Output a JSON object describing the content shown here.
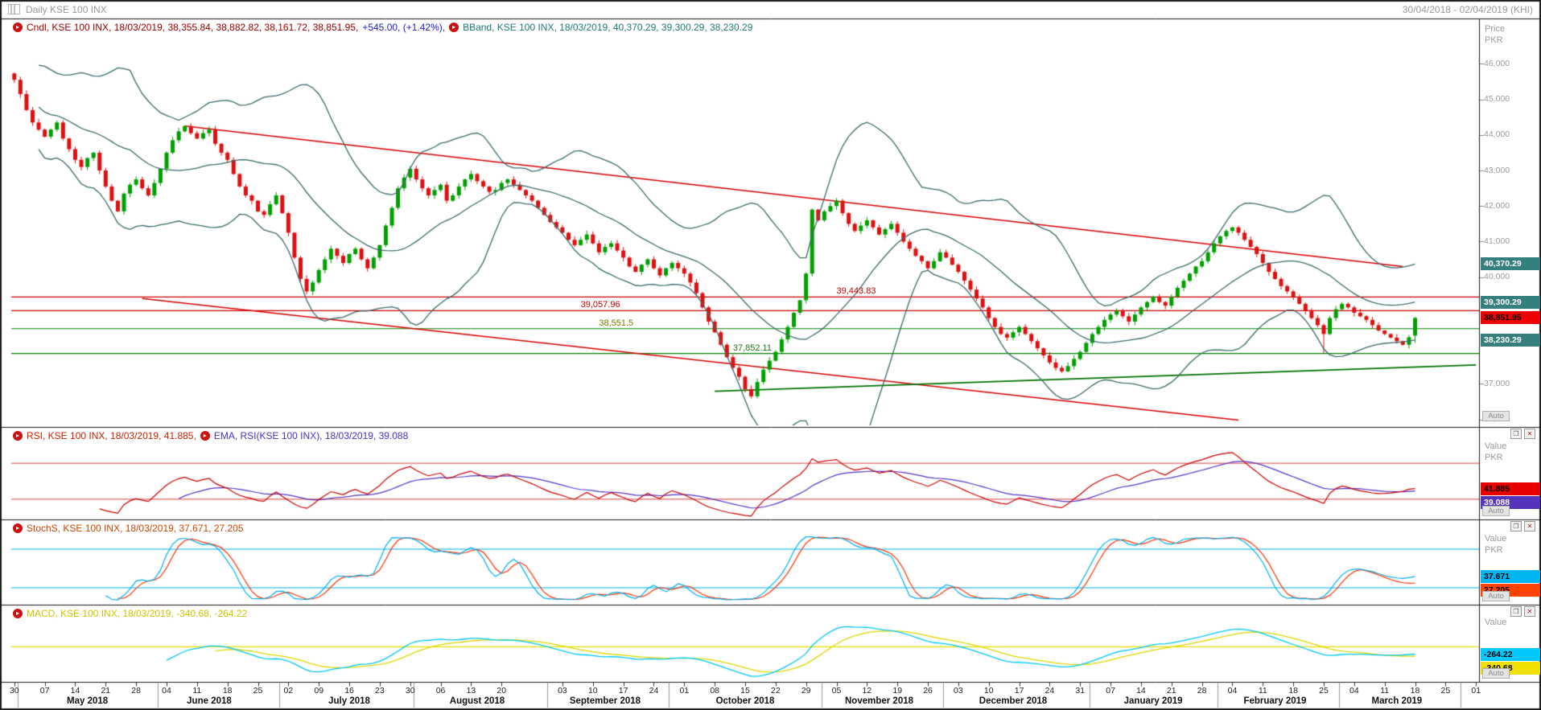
{
  "window": {
    "title": "Daily KSE 100 INX",
    "date_range": "30/04/2018 - 02/04/2019 (KHI)"
  },
  "icons": {
    "restore": "❐",
    "close": "✕",
    "legend_arrow": "▸"
  },
  "main_panel": {
    "legend": {
      "cndl": "Cndl, KSE 100 INX, 18/03/2019, 38,355.84, 38,882.82, 38,161.72, 38,851.95,",
      "change": "+545.00, (+1.42%),",
      "bband": "BBand, KSE 100 INX, 18/03/2019, 40,370.29, 39,300.29, 38,230.29"
    },
    "axis": {
      "title1": "Price",
      "title2": "PKR",
      "auto": "Auto",
      "ticks": [
        {
          "label": "46,000",
          "value": 46000
        },
        {
          "label": "45,000",
          "value": 45000
        },
        {
          "label": "44,000",
          "value": 44000
        },
        {
          "label": "43,000",
          "value": 43000
        },
        {
          "label": "42,000",
          "value": 42000
        },
        {
          "label": "41,000",
          "value": 41000
        },
        {
          "label": "40,000",
          "value": 40000
        },
        {
          "label": "37,000",
          "value": 37000
        },
        {
          "label": "36,000",
          "value": 36000
        }
      ]
    },
    "price_boxes": [
      {
        "label": "40,370.29",
        "value": 40370.29,
        "bg": "#357f7f",
        "fg": "#ffffff"
      },
      {
        "label": "39,300.29",
        "value": 39300.29,
        "bg": "#357f7f",
        "fg": "#ffffff"
      },
      {
        "label": "38,851.95",
        "value": 38851.95,
        "bg": "#f00000",
        "fg": "#000000"
      },
      {
        "label": "38,230.29",
        "value": 38230.29,
        "bg": "#357f7f",
        "fg": "#ffffff"
      }
    ],
    "level_labels": [
      {
        "label": "39,443.83",
        "value": 39443.83,
        "color": "#cc0000",
        "day": 135
      },
      {
        "label": "39,057.96",
        "value": 39057.96,
        "color": "#cc0000",
        "day": 93
      },
      {
        "label": "38,551.5",
        "value": 38551.5,
        "color": "#7d7d00",
        "day": 96
      },
      {
        "label": "37,852.11",
        "value": 37852.11,
        "color": "#1e7d1e",
        "day": 118
      }
    ]
  },
  "rsi_panel": {
    "legend_rsi": "RSI, KSE 100 INX, 18/03/2019, 41.885,",
    "legend_ema": "EMA, RSI(KSE 100 INX), 18/03/2019, 39.088",
    "axis": {
      "title1": "Value",
      "title2": "PKR",
      "auto": "Auto"
    },
    "boxes": [
      {
        "label": "41.885",
        "value": 41.885,
        "bg": "#e80000",
        "fg": "#000000"
      },
      {
        "label": "39.088",
        "value": 39.088,
        "bg": "#5533bb",
        "fg": "#ffffff"
      }
    ]
  },
  "stoch_panel": {
    "legend": "StochS, KSE 100 INX, 18/03/2019, 37.671, 27.205",
    "axis": {
      "title1": "Value",
      "title2": "PKR",
      "auto": "Auto"
    },
    "boxes": [
      {
        "label": "37.671",
        "value": 37.671,
        "bg": "#00b4f0",
        "fg": "#000000"
      },
      {
        "label": "27.205",
        "value": 27.205,
        "bg": "#ff4400",
        "fg": "#000000"
      }
    ]
  },
  "macd_panel": {
    "legend": "MACD, KSE 100 INX, 18/03/2019, -340.68, -264.22",
    "axis": {
      "title1": "Value",
      "auto": "Auto"
    },
    "boxes": [
      {
        "label": "-264.22",
        "value": -264.22,
        "bg": "#00c8fa",
        "fg": "#000000"
      },
      {
        "label": "-340.68",
        "value": -340.68,
        "bg": "#f0e000",
        "fg": "#000000"
      }
    ]
  },
  "chart_data": {
    "type": "candlestick-with-indicators",
    "instrument": "KSE 100 INX",
    "interval": "Daily",
    "last_candle": {
      "date": "18/03/2019",
      "open": 38355.84,
      "high": 38882.82,
      "low": 38161.72,
      "close": 38851.95,
      "change": 545.0,
      "change_pct": 1.42
    },
    "bollinger": {
      "period": 20,
      "upper": 40370.29,
      "middle": 39300.29,
      "lower": 38230.29
    },
    "ylim": [
      35900,
      46800
    ],
    "x_axis_days": 241,
    "closes": [
      45550,
      45150,
      44700,
      44350,
      44150,
      43950,
      44150,
      44350,
      43900,
      43600,
      43300,
      43100,
      43350,
      43500,
      43000,
      42550,
      42150,
      41850,
      42350,
      42600,
      42750,
      42500,
      42300,
      42650,
      43050,
      43500,
      43850,
      44100,
      44250,
      44050,
      43900,
      44050,
      44150,
      43750,
      43500,
      43300,
      42900,
      42550,
      42300,
      42150,
      41850,
      41750,
      42050,
      42300,
      41800,
      41250,
      40550,
      39950,
      39600,
      39850,
      40200,
      40500,
      40800,
      40600,
      40400,
      40650,
      40800,
      40500,
      40250,
      40550,
      40900,
      41450,
      41950,
      42500,
      42800,
      43050,
      42750,
      42500,
      42300,
      42450,
      42600,
      42150,
      42300,
      42550,
      42750,
      42900,
      42700,
      42550,
      42400,
      42450,
      42650,
      42750,
      42600,
      42450,
      42300,
      42150,
      41950,
      41750,
      41550,
      41400,
      41250,
      41050,
      40900,
      41050,
      41200,
      40950,
      40700,
      40850,
      40950,
      40750,
      40550,
      40300,
      40150,
      40350,
      40500,
      40250,
      40050,
      40250,
      40400,
      40250,
      40100,
      39850,
      39550,
      39150,
      38750,
      38450,
      38100,
      37750,
      37450,
      37200,
      36850,
      36650,
      37050,
      37400,
      37650,
      37900,
      38250,
      38600,
      39000,
      39350,
      40100,
      41900,
      41600,
      41850,
      42000,
      42150,
      41800,
      41500,
      41300,
      41450,
      41600,
      41400,
      41200,
      41350,
      41500,
      41250,
      41000,
      40800,
      40600,
      40450,
      40250,
      40450,
      40700,
      40550,
      40350,
      40150,
      39900,
      39650,
      39400,
      39150,
      38850,
      38600,
      38400,
      38300,
      38450,
      38600,
      38400,
      38200,
      38000,
      37800,
      37600,
      37450,
      37350,
      37500,
      37700,
      37900,
      38150,
      38400,
      38600,
      38800,
      38950,
      39050,
      38900,
      38750,
      38950,
      39150,
      39300,
      39450,
      39300,
      39200,
      39450,
      39700,
      39900,
      40100,
      40300,
      40450,
      40700,
      40950,
      41150,
      41300,
      41400,
      41250,
      41050,
      40850,
      40650,
      40400,
      40150,
      39950,
      39750,
      39600,
      39450,
      39250,
      39050,
      38850,
      38650,
      38400,
      38850,
      39100,
      39250,
      39150,
      39000,
      38900,
      38800,
      38650,
      38500,
      38400,
      38300,
      38200,
      38100,
      38310,
      38851.95
    ],
    "wick_events": [
      {
        "day": 215,
        "low": 37860
      }
    ],
    "levels": [
      {
        "value": 39443.83,
        "color": "#cc0000"
      },
      {
        "value": 39057.96,
        "color": "#cc0000"
      },
      {
        "value": 38551.5,
        "color": "#008000"
      },
      {
        "value": 37852.11,
        "color": "#008000"
      }
    ],
    "trendlines": [
      {
        "d1": 28,
        "p1": 44250,
        "d2": 228,
        "p2": 40300,
        "color": "#dd0000"
      },
      {
        "d1": 21,
        "p1": 39400,
        "d2": 201,
        "p2": 35980,
        "color": "#dd0000"
      },
      {
        "d1": 115,
        "p1": 36790,
        "d2": 240,
        "p2": 37530,
        "color": "#007000"
      }
    ],
    "x_ticks": [
      {
        "l": "30",
        "d": 0
      },
      {
        "l": "07",
        "d": 5
      },
      {
        "l": "14",
        "d": 10
      },
      {
        "l": "21",
        "d": 15
      },
      {
        "l": "28",
        "d": 20
      },
      {
        "l": "04",
        "d": 25
      },
      {
        "l": "11",
        "d": 30
      },
      {
        "l": "18",
        "d": 35
      },
      {
        "l": "25",
        "d": 40
      },
      {
        "l": "02",
        "d": 45
      },
      {
        "l": "09",
        "d": 50
      },
      {
        "l": "16",
        "d": 55
      },
      {
        "l": "23",
        "d": 60
      },
      {
        "l": "30",
        "d": 65
      },
      {
        "l": "06",
        "d": 70
      },
      {
        "l": "13",
        "d": 75
      },
      {
        "l": "20",
        "d": 80
      },
      {
        "l": "03",
        "d": 90
      },
      {
        "l": "10",
        "d": 95
      },
      {
        "l": "17",
        "d": 100
      },
      {
        "l": "24",
        "d": 105
      },
      {
        "l": "01",
        "d": 110
      },
      {
        "l": "08",
        "d": 115
      },
      {
        "l": "15",
        "d": 120
      },
      {
        "l": "22",
        "d": 125
      },
      {
        "l": "29",
        "d": 130
      },
      {
        "l": "05",
        "d": 135
      },
      {
        "l": "12",
        "d": 140
      },
      {
        "l": "19",
        "d": 145
      },
      {
        "l": "26",
        "d": 150
      },
      {
        "l": "03",
        "d": 155
      },
      {
        "l": "10",
        "d": 160
      },
      {
        "l": "17",
        "d": 165
      },
      {
        "l": "24",
        "d": 170
      },
      {
        "l": "31",
        "d": 175
      },
      {
        "l": "07",
        "d": 180
      },
      {
        "l": "14",
        "d": 185
      },
      {
        "l": "21",
        "d": 190
      },
      {
        "l": "28",
        "d": 195
      },
      {
        "l": "04",
        "d": 200
      },
      {
        "l": "11",
        "d": 205
      },
      {
        "l": "18",
        "d": 210
      },
      {
        "l": "25",
        "d": 215
      },
      {
        "l": "04",
        "d": 220
      },
      {
        "l": "11",
        "d": 225
      },
      {
        "l": "18",
        "d": 230
      },
      {
        "l": "25",
        "d": 235
      },
      {
        "l": "01",
        "d": 240
      }
    ],
    "months": [
      {
        "l": "May 2018",
        "d": 12
      },
      {
        "l": "June 2018",
        "d": 32
      },
      {
        "l": "July 2018",
        "d": 55
      },
      {
        "l": "August 2018",
        "d": 76
      },
      {
        "l": "September 2018",
        "d": 97
      },
      {
        "l": "October 2018",
        "d": 120
      },
      {
        "l": "November 2018",
        "d": 142
      },
      {
        "l": "December 2018",
        "d": 164
      },
      {
        "l": "January 2019",
        "d": 187
      },
      {
        "l": "February 2019",
        "d": 207
      },
      {
        "l": "March 2019",
        "d": 227
      }
    ],
    "month_separators": [
      1,
      24,
      44,
      66,
      88,
      108,
      133,
      153,
      177,
      198,
      218,
      238
    ],
    "indicators": {
      "rsi": {
        "period": 14,
        "ema_period": 14,
        "levels": [
          70,
          30
        ],
        "ylim": [
          12,
          88
        ],
        "last": 41.885,
        "ema_last": 39.088
      },
      "stoch": {
        "k": 14,
        "smooth": 3,
        "d": 3,
        "levels": [
          80,
          20
        ],
        "ylim": [
          0,
          100
        ],
        "k_last": 37.671,
        "d_last": 27.205
      },
      "macd": {
        "fast": 12,
        "slow": 26,
        "signal": 9,
        "ylim": [
          -1150,
          1000
        ],
        "macd_last": -264.22,
        "signal_last": -340.68
      }
    },
    "colors": {
      "up": "#00a000",
      "down": "#e01010",
      "bband": "#3d6b6b",
      "rsi": "#cc0000",
      "rsi_ema": "#5533cc",
      "rsi_level": "#e04040",
      "stoch_k": "#00b0f0",
      "stoch_d": "#ff3300",
      "stoch_level": "#00b0f0",
      "macd": "#00c8fa",
      "macd_signal": "#e0d800",
      "macd_zero": "#e8e000",
      "level_red": "#dd0000",
      "level_green": "#008000"
    }
  }
}
